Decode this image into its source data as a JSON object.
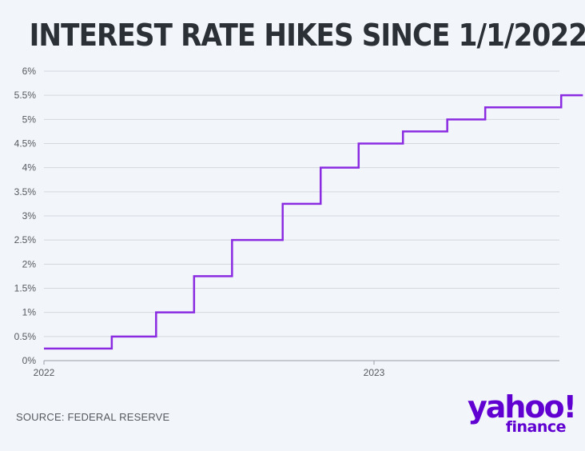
{
  "title": "INTEREST RATE HIKES SINCE 1/1/2022",
  "source": "SOURCE: FEDERAL RESERVE",
  "logo": {
    "brand": "yahoo!",
    "sub": "finance",
    "color": "#6001d2"
  },
  "colors": {
    "line": "#8a2be2",
    "grid": "#d4d8de",
    "text": "#555a61",
    "background": "#f2f5f9"
  },
  "chart_data": {
    "type": "line",
    "step": true,
    "title": "INTEREST RATE HIKES SINCE 1/1/2022",
    "xlabel": "",
    "ylabel": "",
    "ylim": [
      0,
      6
    ],
    "yticks": [
      "0%",
      "0.5%",
      "1%",
      "1.5%",
      "2%",
      "2.5%",
      "3%",
      "3.5%",
      "4%",
      "4.5%",
      "5%",
      "5.5%",
      "6%"
    ],
    "xticks": [
      "2022",
      "2023"
    ],
    "grid": true,
    "series": [
      {
        "x": [
          "2022-01-01",
          "2022-03-17",
          "2022-05-05",
          "2022-06-16",
          "2022-07-28",
          "2022-09-22",
          "2022-11-03",
          "2022-12-15",
          "2023-02-02",
          "2023-03-23",
          "2023-05-04",
          "2023-07-27",
          "2023-08-20"
        ],
        "values": [
          0.25,
          0.5,
          1.0,
          1.75,
          2.5,
          3.25,
          4.0,
          4.5,
          4.75,
          5.0,
          5.25,
          5.5,
          5.5
        ]
      }
    ]
  }
}
